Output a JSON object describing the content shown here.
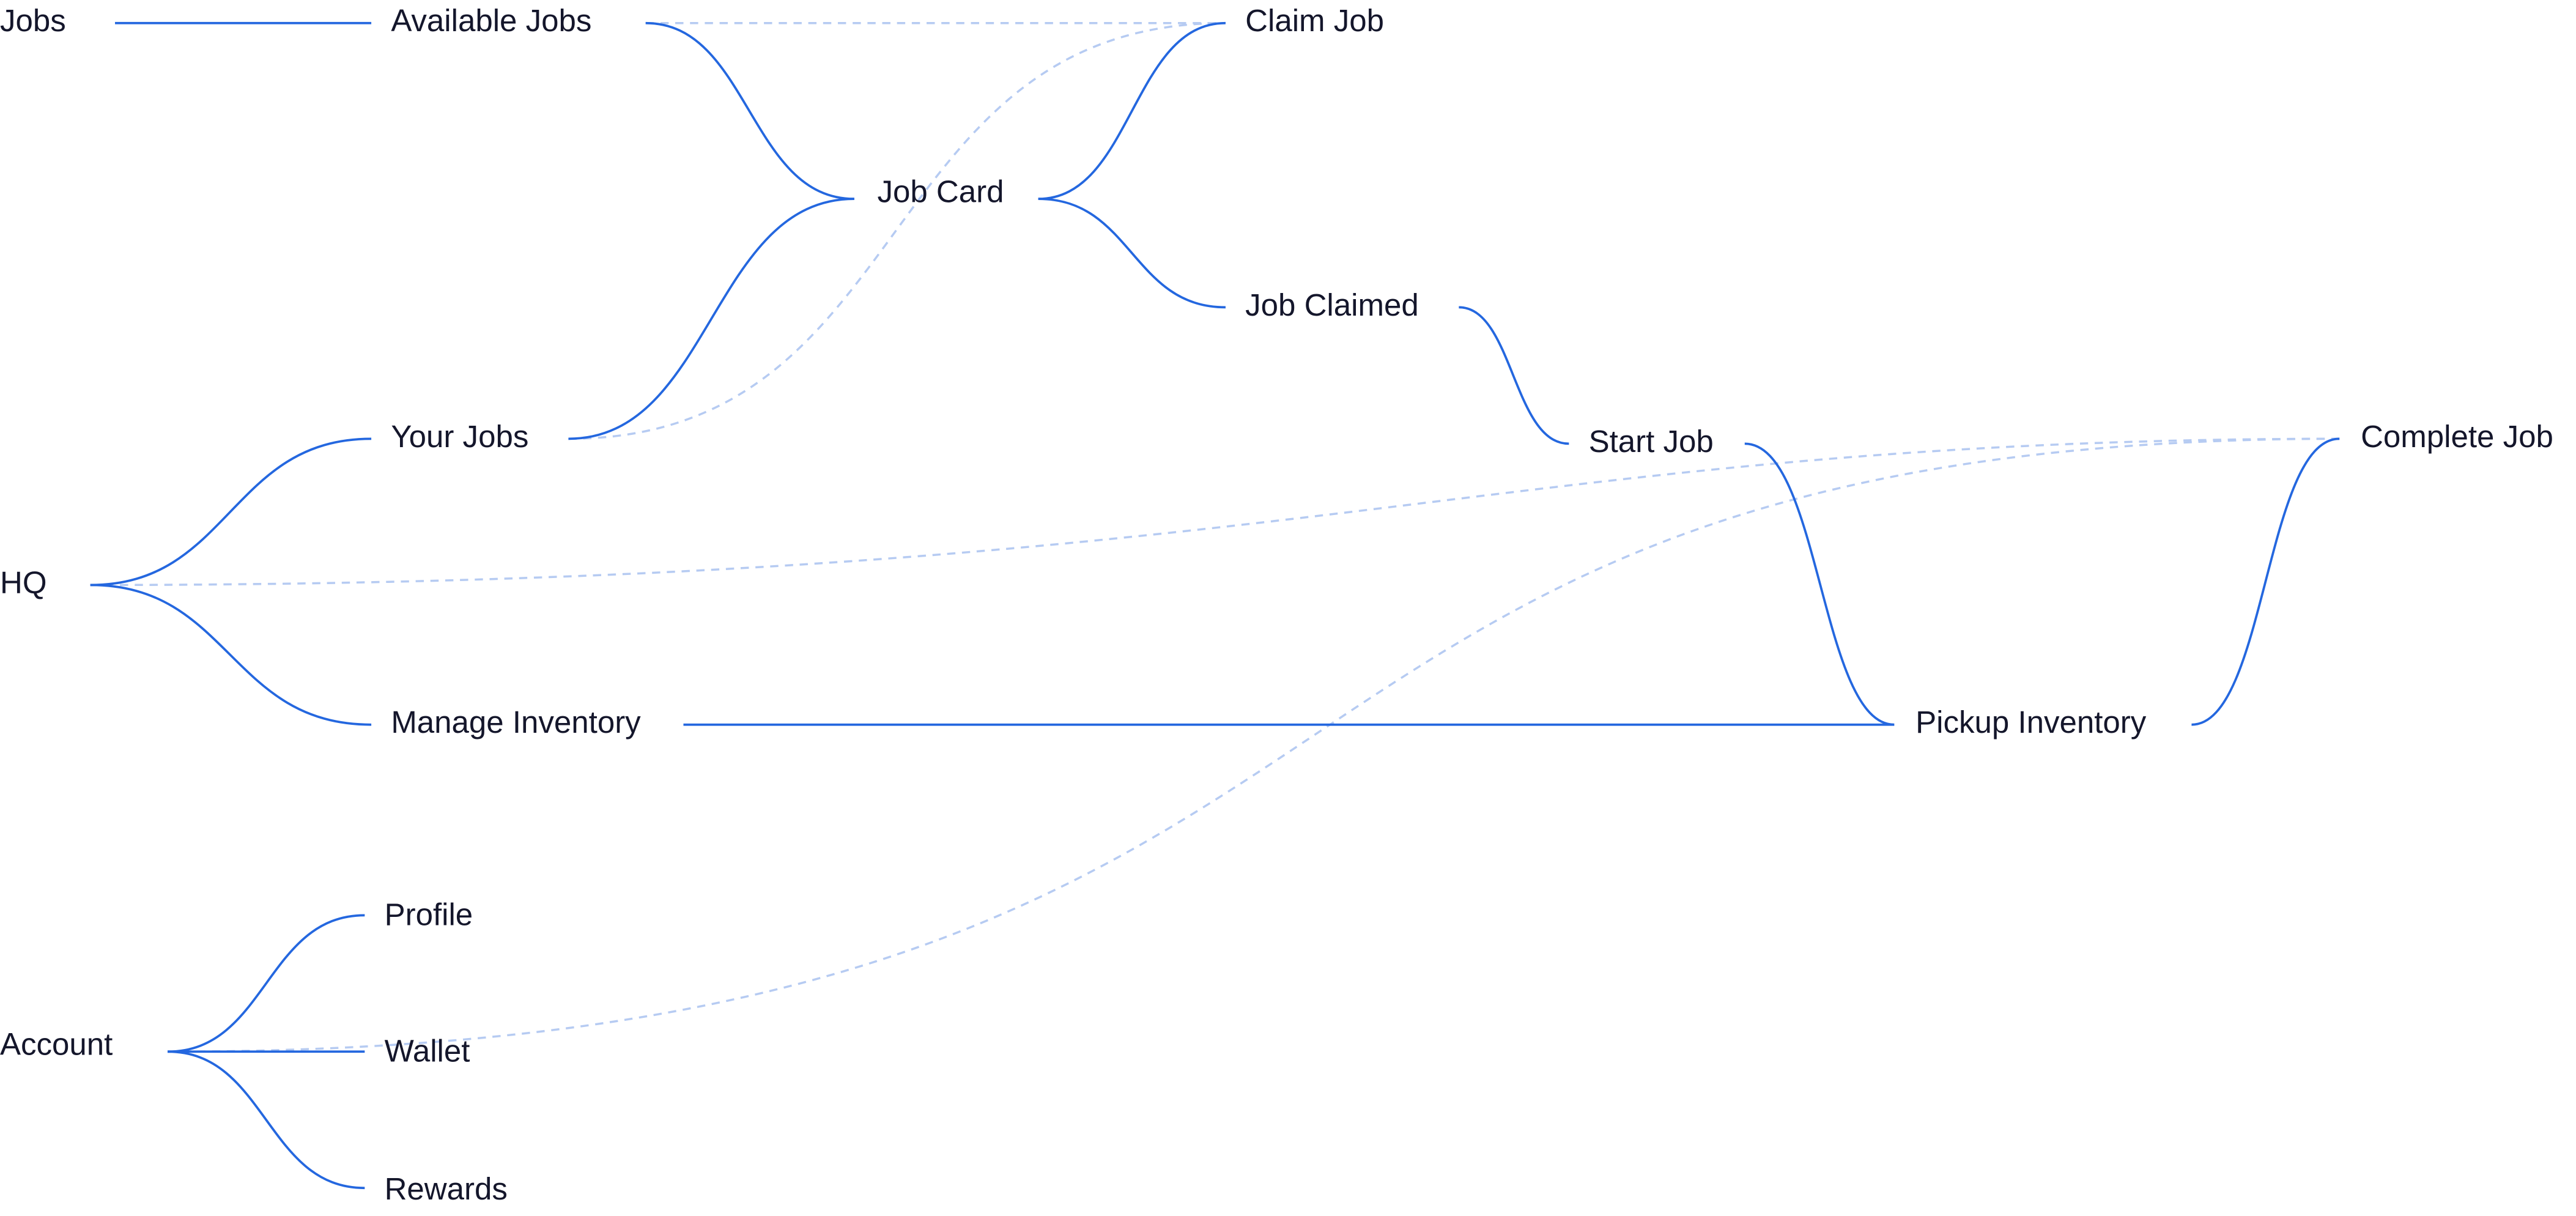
{
  "nodes": [
    {
      "label": "Jobs"
    },
    {
      "label": "Available Jobs"
    },
    {
      "label": "Claim Job"
    },
    {
      "label": "Job Card"
    },
    {
      "label": "Job Claimed"
    },
    {
      "label": "Your Jobs"
    },
    {
      "label": "Start Job"
    },
    {
      "label": "Complete Job"
    },
    {
      "label": "HQ"
    },
    {
      "label": "Manage Inventory"
    },
    {
      "label": "Pickup Inventory"
    },
    {
      "label": "Profile"
    },
    {
      "label": "Account"
    },
    {
      "label": "Wallet"
    },
    {
      "label": "Rewards"
    }
  ]
}
